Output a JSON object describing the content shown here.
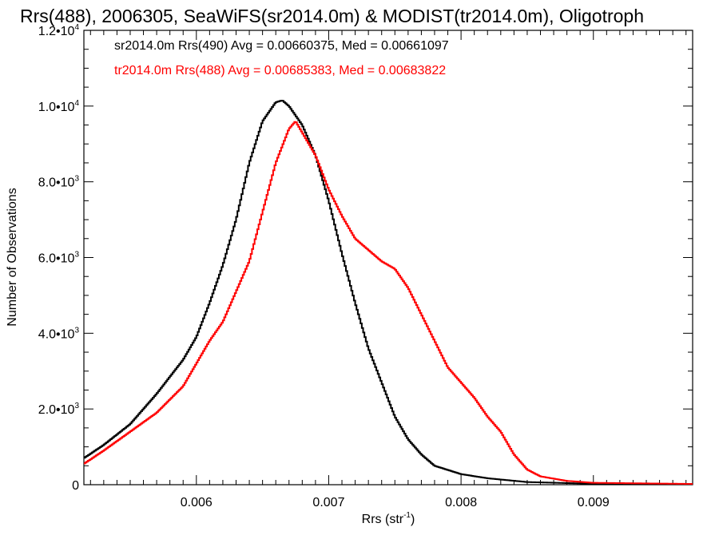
{
  "chart_data": {
    "type": "line",
    "title": "Rrs(488), 2006305, SeaWiFS(sr2014.0m) & MODIST(tr2014.0m), Oligotroph",
    "xlabel": "Rrs (str",
    "xlabel_sup": "-1",
    "xlabel_close": ")",
    "ylabel": "Number of Observations",
    "xlim": [
      0.00515,
      0.00975
    ],
    "ylim": [
      0,
      12000
    ],
    "x_ticks": [
      {
        "value": 0.006,
        "label": "0.006"
      },
      {
        "value": 0.007,
        "label": "0.007"
      },
      {
        "value": 0.008,
        "label": "0.008"
      },
      {
        "value": 0.009,
        "label": "0.009"
      }
    ],
    "y_ticks": [
      {
        "value": 0,
        "mant": "0",
        "exp": ""
      },
      {
        "value": 2000,
        "mant": "2.0•10",
        "exp": "3"
      },
      {
        "value": 4000,
        "mant": "4.0•10",
        "exp": "3"
      },
      {
        "value": 6000,
        "mant": "6.0•10",
        "exp": "3"
      },
      {
        "value": 8000,
        "mant": "8.0•10",
        "exp": "3"
      },
      {
        "value": 10000,
        "mant": "1.0•10",
        "exp": "4"
      },
      {
        "value": 12000,
        "mant": "1.2•10",
        "exp": "4"
      }
    ],
    "grid": false,
    "legend_position": "top-left",
    "series": [
      {
        "label": "sr2014.0m Rrs(490) Avg = 0.00660375, Med = 0.00661097",
        "color": "#000000",
        "x": [
          0.00515,
          0.0053,
          0.0055,
          0.0057,
          0.0059,
          0.006,
          0.0061,
          0.0062,
          0.0063,
          0.0064,
          0.0065,
          0.0066,
          0.00665,
          0.0067,
          0.0068,
          0.0069,
          0.007,
          0.0071,
          0.0072,
          0.0073,
          0.0074,
          0.0075,
          0.0076,
          0.0077,
          0.0078,
          0.008,
          0.0082,
          0.0085,
          0.009,
          0.00975
        ],
        "y": [
          700,
          1050,
          1600,
          2400,
          3300,
          3900,
          4800,
          5800,
          7000,
          8500,
          9600,
          10100,
          10150,
          10000,
          9500,
          8700,
          7500,
          6100,
          4800,
          3600,
          2700,
          1800,
          1200,
          800,
          500,
          280,
          170,
          70,
          25,
          10
        ]
      },
      {
        "label": "tr2014.0m Rrs(488) Avg = 0.00685383, Med = 0.00683822",
        "color": "#ff0000",
        "x": [
          0.00515,
          0.0053,
          0.0055,
          0.0057,
          0.0059,
          0.006,
          0.0061,
          0.0062,
          0.0063,
          0.0064,
          0.0065,
          0.0066,
          0.0067,
          0.00675,
          0.0068,
          0.0069,
          0.007,
          0.0071,
          0.0072,
          0.0073,
          0.0074,
          0.0075,
          0.0076,
          0.0077,
          0.0078,
          0.0079,
          0.008,
          0.0081,
          0.0082,
          0.0083,
          0.0084,
          0.0085,
          0.0086,
          0.0088,
          0.009,
          0.00975
        ],
        "y": [
          550,
          900,
          1400,
          1900,
          2600,
          3200,
          3800,
          4300,
          5100,
          5900,
          7200,
          8500,
          9400,
          9600,
          9300,
          8700,
          7800,
          7100,
          6500,
          6200,
          5900,
          5700,
          5200,
          4500,
          3800,
          3100,
          2700,
          2300,
          1800,
          1400,
          800,
          400,
          220,
          100,
          50,
          20
        ]
      }
    ]
  }
}
